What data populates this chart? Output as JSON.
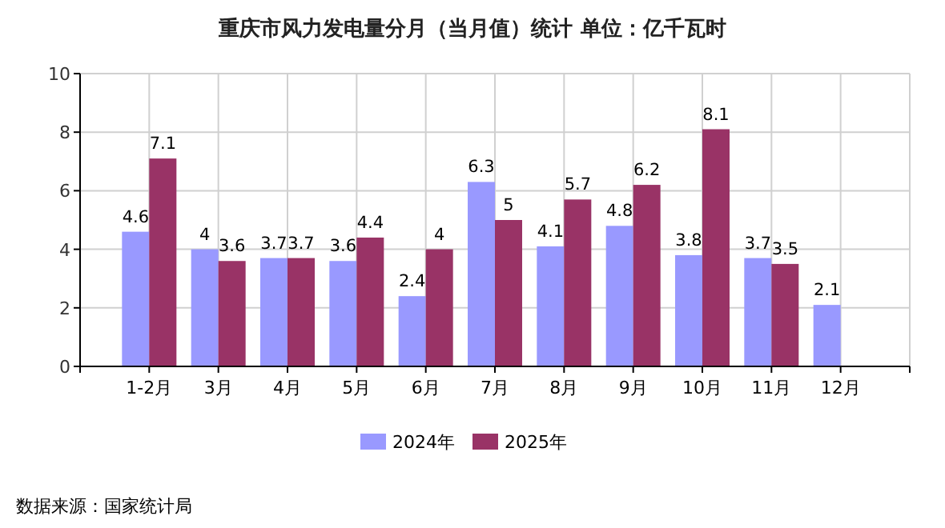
{
  "chart_data": {
    "type": "bar",
    "title": "重庆市风力发电量分月（当月值）统计 单位：亿千瓦时",
    "categories": [
      "1-2月",
      "3月",
      "4月",
      "5月",
      "6月",
      "7月",
      "8月",
      "9月",
      "10月",
      "11月",
      "12月"
    ],
    "series": [
      {
        "name": "2024年",
        "color": "#9999ff",
        "values": [
          4.6,
          4,
          3.7,
          3.6,
          2.4,
          6.3,
          4.1,
          4.8,
          3.8,
          3.7,
          2.1
        ]
      },
      {
        "name": "2025年",
        "color": "#993366",
        "values": [
          7.1,
          3.6,
          3.7,
          4.4,
          4,
          5,
          5.7,
          6.2,
          8.1,
          3.5,
          null
        ]
      }
    ],
    "ylim": [
      0,
      10
    ],
    "yticks": [
      0,
      2,
      4,
      6,
      8,
      10
    ],
    "grid": true,
    "legend": "bottom",
    "data_labels": true,
    "annotations": [
      "数据来源：国家统计局"
    ]
  }
}
